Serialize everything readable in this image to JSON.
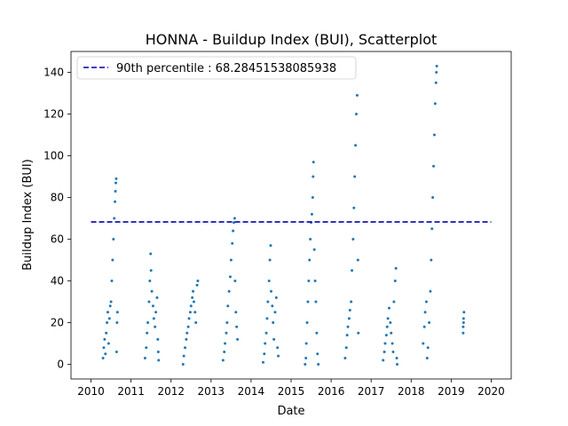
{
  "chart_data": {
    "type": "scatter",
    "title": "HONNA - Buildup Index (BUI), Scatterplot",
    "xlabel": "Date",
    "ylabel": "Buildup Index (BUI)",
    "xlim": [
      2009.5,
      2020.5
    ],
    "ylim": [
      -7,
      150
    ],
    "x_ticks": [
      2010,
      2011,
      2012,
      2013,
      2014,
      2015,
      2016,
      2017,
      2018,
      2019,
      2020
    ],
    "x_tick_labels": [
      "2010",
      "2011",
      "2012",
      "2013",
      "2014",
      "2015",
      "2016",
      "2017",
      "2018",
      "2019",
      "2020"
    ],
    "y_ticks": [
      0,
      20,
      40,
      60,
      80,
      100,
      120,
      140
    ],
    "y_tick_labels": [
      "0",
      "20",
      "40",
      "60",
      "80",
      "100",
      "120",
      "140"
    ],
    "grid": false,
    "legend_position": "top-left",
    "colors": {
      "points": "#1f77b4",
      "reference_line": "#0000aa"
    },
    "reference_line": {
      "label": "90th percentile : 68.28451538085938",
      "value": 68.28451538085938,
      "x_range": [
        2010,
        2020
      ],
      "style": "dashed"
    },
    "series": [
      {
        "points": [
          [
            2010.3,
            3
          ],
          [
            2010.32,
            8
          ],
          [
            2010.34,
            12
          ],
          [
            2010.36,
            5
          ],
          [
            2010.38,
            15
          ],
          [
            2010.4,
            20
          ],
          [
            2010.42,
            25
          ],
          [
            2010.44,
            10
          ],
          [
            2010.46,
            22
          ],
          [
            2010.48,
            28
          ],
          [
            2010.5,
            30
          ],
          [
            2010.52,
            40
          ],
          [
            2010.54,
            50
          ],
          [
            2010.56,
            60
          ],
          [
            2010.58,
            70
          ],
          [
            2010.6,
            78
          ],
          [
            2010.61,
            83
          ],
          [
            2010.62,
            87
          ],
          [
            2010.63,
            89
          ],
          [
            2010.65,
            20
          ],
          [
            2010.66,
            25
          ],
          [
            2010.64,
            6
          ],
          [
            2011.35,
            3
          ],
          [
            2011.38,
            8
          ],
          [
            2011.4,
            15
          ],
          [
            2011.42,
            20
          ],
          [
            2011.45,
            30
          ],
          [
            2011.47,
            40
          ],
          [
            2011.49,
            53
          ],
          [
            2011.5,
            45
          ],
          [
            2011.52,
            35
          ],
          [
            2011.55,
            28
          ],
          [
            2011.57,
            22
          ],
          [
            2011.6,
            18
          ],
          [
            2011.62,
            25
          ],
          [
            2011.65,
            32
          ],
          [
            2011.67,
            12
          ],
          [
            2011.68,
            6
          ],
          [
            2011.69,
            2
          ],
          [
            2012.3,
            0
          ],
          [
            2012.32,
            4
          ],
          [
            2012.35,
            8
          ],
          [
            2012.38,
            12
          ],
          [
            2012.4,
            15
          ],
          [
            2012.43,
            18
          ],
          [
            2012.45,
            22
          ],
          [
            2012.48,
            25
          ],
          [
            2012.5,
            28
          ],
          [
            2012.53,
            32
          ],
          [
            2012.55,
            35
          ],
          [
            2012.57,
            30
          ],
          [
            2012.6,
            25
          ],
          [
            2012.62,
            20
          ],
          [
            2012.65,
            38
          ],
          [
            2012.67,
            40
          ],
          [
            2013.3,
            2
          ],
          [
            2013.33,
            6
          ],
          [
            2013.35,
            10
          ],
          [
            2013.38,
            15
          ],
          [
            2013.4,
            20
          ],
          [
            2013.42,
            28
          ],
          [
            2013.45,
            35
          ],
          [
            2013.48,
            42
          ],
          [
            2013.5,
            50
          ],
          [
            2013.53,
            58
          ],
          [
            2013.55,
            64
          ],
          [
            2013.57,
            68
          ],
          [
            2013.59,
            70
          ],
          [
            2013.6,
            40
          ],
          [
            2013.62,
            25
          ],
          [
            2013.64,
            18
          ],
          [
            2013.66,
            12
          ],
          [
            2014.3,
            1
          ],
          [
            2014.33,
            5
          ],
          [
            2014.35,
            10
          ],
          [
            2014.38,
            15
          ],
          [
            2014.4,
            22
          ],
          [
            2014.42,
            30
          ],
          [
            2014.45,
            40
          ],
          [
            2014.47,
            50
          ],
          [
            2014.49,
            57
          ],
          [
            2014.5,
            35
          ],
          [
            2014.53,
            28
          ],
          [
            2014.55,
            20
          ],
          [
            2014.57,
            12
          ],
          [
            2014.6,
            25
          ],
          [
            2014.63,
            32
          ],
          [
            2014.66,
            8
          ],
          [
            2014.68,
            4
          ],
          [
            2015.35,
            0
          ],
          [
            2015.37,
            3
          ],
          [
            2015.38,
            10
          ],
          [
            2015.4,
            20
          ],
          [
            2015.42,
            30
          ],
          [
            2015.44,
            40
          ],
          [
            2015.46,
            50
          ],
          [
            2015.48,
            60
          ],
          [
            2015.5,
            68
          ],
          [
            2015.52,
            72
          ],
          [
            2015.54,
            80
          ],
          [
            2015.55,
            90
          ],
          [
            2015.56,
            97
          ],
          [
            2015.58,
            55
          ],
          [
            2015.6,
            40
          ],
          [
            2015.62,
            30
          ],
          [
            2015.64,
            15
          ],
          [
            2015.66,
            5
          ],
          [
            2015.68,
            0
          ],
          [
            2016.35,
            3
          ],
          [
            2016.38,
            8
          ],
          [
            2016.4,
            14
          ],
          [
            2016.42,
            18
          ],
          [
            2016.45,
            22
          ],
          [
            2016.47,
            26
          ],
          [
            2016.5,
            30
          ],
          [
            2016.52,
            45
          ],
          [
            2016.55,
            60
          ],
          [
            2016.57,
            75
          ],
          [
            2016.59,
            90
          ],
          [
            2016.61,
            105
          ],
          [
            2016.63,
            120
          ],
          [
            2016.65,
            129
          ],
          [
            2016.67,
            50
          ],
          [
            2016.68,
            15
          ],
          [
            2017.3,
            2
          ],
          [
            2017.33,
            6
          ],
          [
            2017.35,
            10
          ],
          [
            2017.38,
            14
          ],
          [
            2017.4,
            18
          ],
          [
            2017.42,
            22
          ],
          [
            2017.45,
            27
          ],
          [
            2017.48,
            20
          ],
          [
            2017.5,
            15
          ],
          [
            2017.53,
            10
          ],
          [
            2017.55,
            6
          ],
          [
            2017.57,
            30
          ],
          [
            2017.6,
            40
          ],
          [
            2017.62,
            46
          ],
          [
            2017.64,
            3
          ],
          [
            2017.65,
            0
          ],
          [
            2018.3,
            10
          ],
          [
            2018.33,
            18
          ],
          [
            2018.35,
            25
          ],
          [
            2018.38,
            30
          ],
          [
            2018.4,
            3
          ],
          [
            2018.42,
            8
          ],
          [
            2018.45,
            20
          ],
          [
            2018.48,
            35
          ],
          [
            2018.5,
            50
          ],
          [
            2018.52,
            65
          ],
          [
            2018.54,
            80
          ],
          [
            2018.56,
            95
          ],
          [
            2018.58,
            110
          ],
          [
            2018.6,
            125
          ],
          [
            2018.62,
            135
          ],
          [
            2018.63,
            140
          ],
          [
            2018.64,
            143
          ],
          [
            2019.3,
            15
          ],
          [
            2019.3,
            18
          ],
          [
            2019.31,
            20
          ],
          [
            2019.31,
            22
          ],
          [
            2019.32,
            25
          ]
        ]
      }
    ]
  }
}
